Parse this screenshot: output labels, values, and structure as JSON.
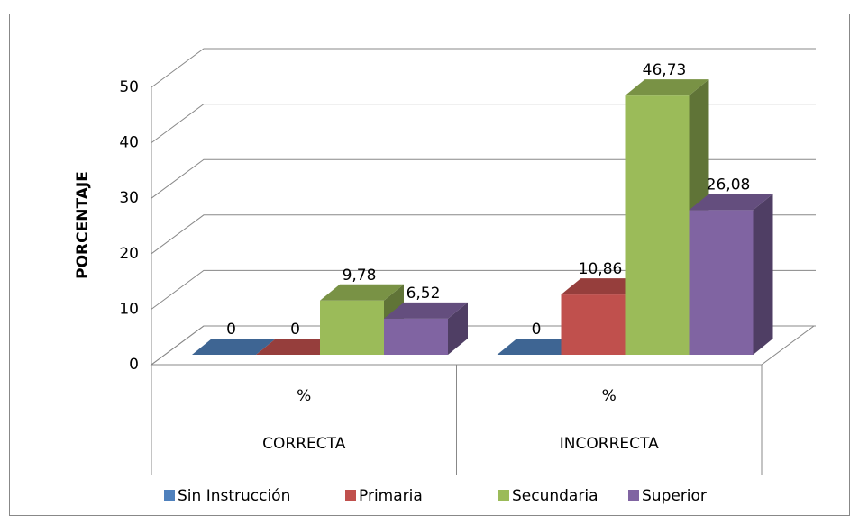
{
  "chart_data": {
    "type": "bar3d",
    "y_label": "PORCENTAJE",
    "categories": [
      "%",
      "%"
    ],
    "category_groups": [
      "CORRECTA",
      "INCORRECTA"
    ],
    "series": [
      {
        "name": "Sin Instrucción",
        "color": "#4f81bd",
        "values": [
          0,
          0
        ],
        "value_labels": [
          "0",
          "0"
        ]
      },
      {
        "name": "Primaria",
        "color": "#c0504d",
        "values": [
          0,
          10.86
        ],
        "value_labels": [
          "0",
          "10,86"
        ]
      },
      {
        "name": "Secundaria",
        "color": "#9bbb59",
        "values": [
          9.78,
          46.73
        ],
        "value_labels": [
          "9,78",
          "46,73"
        ]
      },
      {
        "name": "Superior",
        "color": "#8064a2",
        "values": [
          6.52,
          26.08
        ],
        "value_labels": [
          "6,52",
          "26,08"
        ]
      }
    ],
    "ylim": [
      0,
      50
    ],
    "yticks": [
      0,
      10,
      20,
      30,
      40,
      50
    ],
    "grid": true,
    "legend": "bottom"
  }
}
